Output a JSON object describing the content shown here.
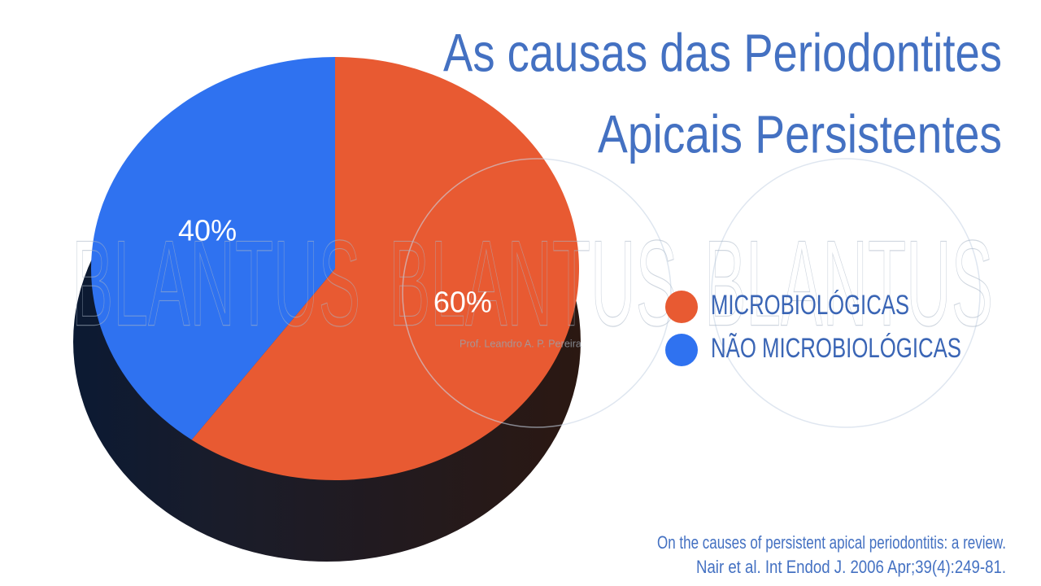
{
  "chart_data": {
    "type": "pie",
    "title": [
      "As causas das Periodontites",
      "Apicais Persistentes"
    ],
    "categories": [
      "MICROBIOLÓGICAS",
      "NÃO MICROBIOLÓGICAS"
    ],
    "values": [
      60,
      40
    ],
    "value_labels": [
      "60%",
      "40%"
    ],
    "colors": [
      "#e85a32",
      "#2f72f0"
    ],
    "watermark": "BLANTUS",
    "watermark_credit": "Prof. Leandro A. P. Pereira",
    "source": [
      "On the causes of persistent apical periodontitis: a review.",
      "Nair et al. Int Endod J. 2006 Apr;39(4):249-81."
    ]
  }
}
